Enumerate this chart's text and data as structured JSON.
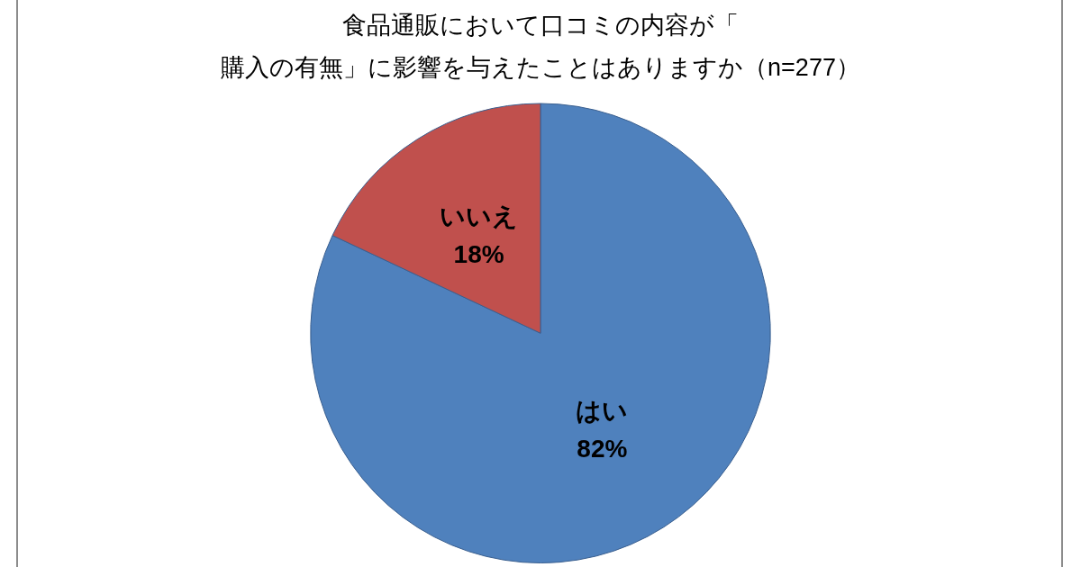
{
  "chart_data": {
    "type": "pie",
    "title": "食品通販において口コミの内容が「購入の有無」に影響を与えたことはありますか（n=277）",
    "categories": [
      "はい",
      "いいえ"
    ],
    "values": [
      82,
      18
    ],
    "colors": [
      "#4f81bd",
      "#c0504d"
    ],
    "value_labels": [
      "82%",
      "18%"
    ],
    "legend": false
  }
}
